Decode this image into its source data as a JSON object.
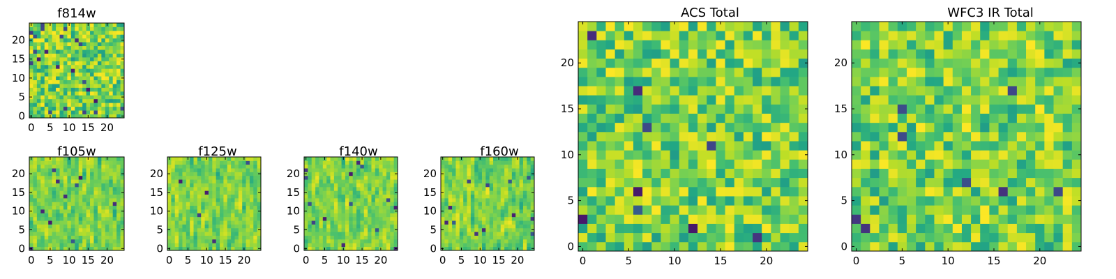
{
  "colormap": "viridis",
  "chart_data": [
    {
      "type": "heatmap",
      "title": "f814w",
      "grid_size": 25,
      "xlim": [
        0,
        24
      ],
      "ylim": [
        0,
        24
      ],
      "xticks": [
        0,
        5,
        10,
        15,
        20
      ],
      "yticks": [
        0,
        5,
        10,
        15,
        20
      ],
      "x_tick_labels": [
        "0",
        "5",
        "10",
        "15",
        "20"
      ],
      "y_tick_labels": [
        "0",
        "5",
        "10",
        "15",
        "20"
      ],
      "value_range": [
        0,
        1
      ],
      "seed": 11,
      "smooth": 0,
      "dark_cells": 22
    },
    {
      "type": "heatmap",
      "title": "f105w",
      "grid_size": 25,
      "xlim": [
        0,
        24
      ],
      "ylim": [
        0,
        24
      ],
      "xticks": [
        0,
        5,
        10,
        15,
        20
      ],
      "yticks": [
        0,
        5,
        10,
        15,
        20
      ],
      "x_tick_labels": [
        "0",
        "5",
        "10",
        "15",
        "20"
      ],
      "y_tick_labels": [
        "0",
        "5",
        "10",
        "15",
        "20"
      ],
      "value_range": [
        0,
        1
      ],
      "seed": 23,
      "smooth": 1,
      "dark_cells": 10
    },
    {
      "type": "heatmap",
      "title": "f125w",
      "grid_size": 25,
      "xlim": [
        0,
        24
      ],
      "ylim": [
        0,
        24
      ],
      "xticks": [
        0,
        5,
        10,
        15,
        20
      ],
      "yticks": [
        0,
        5,
        10,
        15,
        20
      ],
      "x_tick_labels": [
        "0",
        "5",
        "10",
        "15",
        "20"
      ],
      "y_tick_labels": [
        "0",
        "5",
        "10",
        "15",
        "20"
      ],
      "value_range": [
        0,
        1
      ],
      "seed": 37,
      "smooth": 1,
      "dark_cells": 5
    },
    {
      "type": "heatmap",
      "title": "f140w",
      "grid_size": 25,
      "xlim": [
        0,
        24
      ],
      "ylim": [
        0,
        24
      ],
      "xticks": [
        0,
        5,
        10,
        15,
        20
      ],
      "yticks": [
        0,
        5,
        10,
        15,
        20
      ],
      "x_tick_labels": [
        "0",
        "5",
        "10",
        "15",
        "20"
      ],
      "y_tick_labels": [
        "0",
        "5",
        "10",
        "15",
        "20"
      ],
      "value_range": [
        0,
        1
      ],
      "seed": 41,
      "smooth": 1,
      "dark_cells": 14
    },
    {
      "type": "heatmap",
      "title": "f160w",
      "grid_size": 25,
      "xlim": [
        0,
        24
      ],
      "ylim": [
        0,
        24
      ],
      "xticks": [
        0,
        5,
        10,
        15,
        20
      ],
      "yticks": [
        0,
        5,
        10,
        15,
        20
      ],
      "x_tick_labels": [
        "0",
        "5",
        "10",
        "15",
        "20"
      ],
      "y_tick_labels": [
        "0",
        "5",
        "10",
        "15",
        "20"
      ],
      "value_range": [
        0,
        1
      ],
      "seed": 53,
      "smooth": 1,
      "dark_cells": 12
    },
    {
      "type": "heatmap",
      "title": "ACS Total",
      "grid_size": 25,
      "xlim": [
        0,
        24
      ],
      "ylim": [
        0,
        24
      ],
      "xticks": [
        0,
        5,
        10,
        15,
        20
      ],
      "yticks": [
        0,
        5,
        10,
        15,
        20
      ],
      "x_tick_labels": [
        "0",
        "5",
        "10",
        "15",
        "20"
      ],
      "y_tick_labels": [
        "0",
        "5",
        "10",
        "15",
        "20"
      ],
      "value_range": [
        0,
        1
      ],
      "seed": 67,
      "smooth": 0,
      "dark_cells": 9
    },
    {
      "type": "heatmap",
      "title": "WFC3 IR Total",
      "grid_size": 25,
      "xlim": [
        0,
        24
      ],
      "ylim": [
        0,
        24
      ],
      "xticks": [
        0,
        5,
        10,
        15,
        20
      ],
      "yticks": [
        0,
        5,
        10,
        15,
        20
      ],
      "x_tick_labels": [
        "0",
        "5",
        "10",
        "15",
        "20"
      ],
      "y_tick_labels": [
        "0",
        "5",
        "10",
        "15",
        "20"
      ],
      "value_range": [
        0,
        1
      ],
      "seed": 79,
      "smooth": 0,
      "dark_cells": 8
    }
  ]
}
